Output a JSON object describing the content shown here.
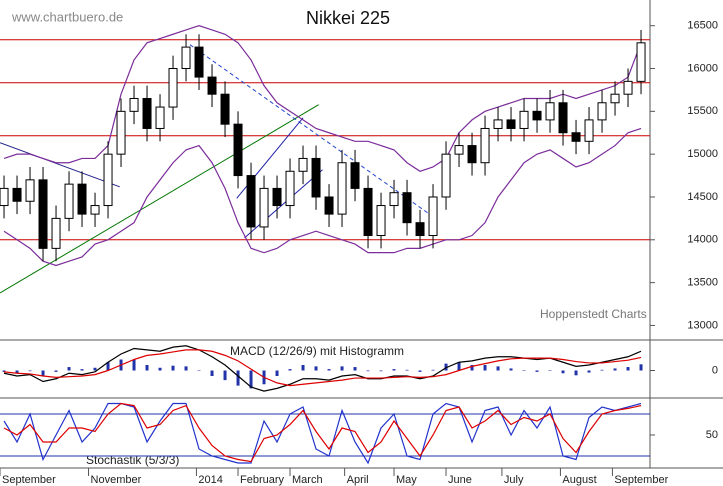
{
  "chart_data": {
    "type": "candlestick",
    "title": "Nikkei 225",
    "watermark": "www.chartbuero.de",
    "source": "Hoppenstedt Charts",
    "xlim": [
      -0.31,
      49.69
    ],
    "xticks": [
      {
        "value": -0.31,
        "label": "September"
      },
      {
        "value": 6.5,
        "label": "November"
      },
      {
        "value": 14.8,
        "label": "2014"
      },
      {
        "value": 18,
        "label": "February"
      },
      {
        "value": 22,
        "label": "March"
      },
      {
        "value": 26.2,
        "label": "April"
      },
      {
        "value": 30,
        "label": "May"
      },
      {
        "value": 34,
        "label": "June"
      },
      {
        "value": 38.3,
        "label": "July"
      },
      {
        "value": 42.8,
        "label": "August"
      },
      {
        "value": 46.8,
        "label": "September"
      }
    ],
    "ylim": [
      12830,
      16800
    ],
    "yticks": [
      13000,
      13500,
      14000,
      14500,
      15000,
      15500,
      16000,
      16500
    ],
    "up_color": "#ffffff",
    "down_color": "#000000",
    "open": [
      14400,
      14600,
      14450,
      14700,
      13900,
      14250,
      14650,
      14300,
      14400,
      15000,
      15500,
      15650,
      15300,
      15550,
      16000,
      16250,
      15900,
      15700,
      15350,
      14750,
      14150,
      14600,
      14400,
      14800,
      14950,
      14500,
      14300,
      14900,
      14600,
      14050,
      14400,
      14550,
      14200,
      14050,
      14500,
      15000,
      15100,
      14900,
      15300,
      15400,
      15300,
      15500,
      15400,
      15600,
      15250,
      15150,
      15400,
      15600,
      15700,
      15850
    ],
    "high": [
      14750,
      14750,
      14850,
      14850,
      14400,
      14800,
      14800,
      14550,
      15150,
      15650,
      15800,
      15800,
      15700,
      16150,
      16400,
      16400,
      16050,
      15850,
      15500,
      14900,
      14750,
      14750,
      14950,
      15100,
      15100,
      14650,
      15050,
      15050,
      14750,
      14550,
      14700,
      14700,
      14350,
      14650,
      15150,
      15250,
      15250,
      15450,
      15550,
      15550,
      15650,
      15650,
      15750,
      15750,
      15400,
      15550,
      15750,
      15850,
      16000,
      16450
    ],
    "low": [
      14250,
      14300,
      14300,
      13750,
      13750,
      14100,
      14150,
      14150,
      14250,
      14850,
      15350,
      15150,
      15150,
      15400,
      15850,
      15750,
      15550,
      15200,
      14600,
      14000,
      14000,
      14250,
      14250,
      14650,
      14350,
      14150,
      14150,
      14450,
      13900,
      13900,
      14250,
      14050,
      13900,
      13900,
      14350,
      14850,
      14750,
      14750,
      15150,
      15150,
      15150,
      15250,
      15250,
      15100,
      15000,
      15000,
      15250,
      15450,
      15550,
      15700
    ],
    "close": [
      14600,
      14450,
      14700,
      13900,
      14250,
      14650,
      14300,
      14400,
      15000,
      15500,
      15650,
      15300,
      15550,
      16000,
      16250,
      15900,
      15700,
      15350,
      14750,
      14150,
      14600,
      14400,
      14800,
      14950,
      14500,
      14300,
      14900,
      14600,
      14050,
      14400,
      14550,
      14200,
      14050,
      14500,
      15000,
      15100,
      14900,
      15300,
      15400,
      15300,
      15500,
      15400,
      15600,
      15250,
      15150,
      15400,
      15600,
      15700,
      15850,
      16300
    ],
    "bands": {
      "color": "#7b2d9a",
      "upper": [
        14950,
        15000,
        15000,
        14950,
        14900,
        14900,
        14950,
        14950,
        15100,
        15700,
        16100,
        16300,
        16350,
        16400,
        16450,
        16500,
        16450,
        16400,
        16300,
        16100,
        15800,
        15600,
        15500,
        15400,
        15300,
        15250,
        15200,
        15150,
        15150,
        15100,
        15050,
        14900,
        14800,
        14850,
        14950,
        15250,
        15400,
        15500,
        15550,
        15600,
        15650,
        15650,
        15650,
        15700,
        15650,
        15700,
        15750,
        15800,
        15900,
        16300
      ],
      "lower": [
        14100,
        14000,
        13900,
        13750,
        13700,
        13750,
        13800,
        13950,
        14000,
        14100,
        14200,
        14500,
        14700,
        14900,
        15050,
        15100,
        14900,
        14600,
        14200,
        13900,
        13850,
        13900,
        14000,
        14050,
        14100,
        14050,
        14000,
        13950,
        13850,
        13850,
        13850,
        13900,
        13900,
        13950,
        14000,
        14000,
        14050,
        14200,
        14500,
        14700,
        14900,
        15000,
        15050,
        14950,
        14850,
        14900,
        15000,
        15100,
        15250,
        15300
      ]
    },
    "levels": {
      "color": "#cc0000",
      "values": [
        16336,
        15834,
        15215,
        14000
      ]
    },
    "trend_lines": [
      {
        "color": "#22228a",
        "dashed": false,
        "x": [
          -0.31,
          8.9
        ],
        "y": [
          15133,
          14619
        ]
      },
      {
        "color": "#007700",
        "dashed": false,
        "x": [
          -0.31,
          24.2
        ],
        "y": [
          13380,
          15577
        ]
      },
      {
        "color": "#2244cc",
        "dashed": true,
        "x": [
          14.3,
          32.8
        ],
        "y": [
          16278,
          14292
        ]
      },
      {
        "color": "#2222aa",
        "dashed": false,
        "x": [
          18.5,
          24.5
        ],
        "y": [
          14023,
          14818
        ]
      },
      {
        "color": "#2222aa",
        "dashed": false,
        "x": [
          17.9,
          23
        ],
        "y": [
          14485,
          15425
        ]
      }
    ],
    "macd": {
      "title": "MACD (12/26/9) mit Histogramm",
      "ylim": [
        -200,
        200
      ],
      "yticks": [
        0
      ],
      "macd_color": "#000000",
      "signal_color": "#dd0000",
      "hist_color": "#2233aa",
      "macd": [
        -20,
        -40,
        -30,
        -80,
        -60,
        -20,
        -30,
        -10,
        60,
        120,
        160,
        150,
        140,
        170,
        180,
        150,
        100,
        40,
        -40,
        -120,
        -150,
        -130,
        -100,
        -60,
        -60,
        -70,
        -40,
        -30,
        -60,
        -60,
        -40,
        -40,
        -60,
        -40,
        20,
        60,
        70,
        90,
        100,
        100,
        90,
        80,
        90,
        60,
        30,
        40,
        60,
        80,
        100,
        140
      ],
      "signal": [
        -10,
        -20,
        -25,
        -40,
        -50,
        -45,
        -40,
        -30,
        0,
        40,
        80,
        110,
        120,
        135,
        150,
        150,
        140,
        110,
        70,
        10,
        -50,
        -90,
        -110,
        -100,
        -90,
        -80,
        -70,
        -55,
        -55,
        -55,
        -50,
        -45,
        -50,
        -45,
        -30,
        0,
        30,
        50,
        70,
        85,
        90,
        90,
        90,
        80,
        65,
        55,
        55,
        65,
        75,
        95
      ],
      "histogram": [
        -10,
        -20,
        -5,
        -40,
        -10,
        25,
        10,
        20,
        60,
        80,
        80,
        40,
        20,
        35,
        30,
        0,
        -40,
        -70,
        -110,
        -130,
        -100,
        -40,
        10,
        40,
        30,
        10,
        30,
        25,
        -5,
        -5,
        10,
        5,
        -10,
        5,
        50,
        60,
        40,
        40,
        30,
        15,
        0,
        -10,
        0,
        -20,
        -35,
        -15,
        5,
        15,
        25,
        45
      ]
    },
    "stochastic": {
      "title": "Stochastik (5/3/3)",
      "ylim": [
        0,
        100
      ],
      "yticks": [
        50
      ],
      "levels": [
        80,
        20
      ],
      "k_color": "#2233cc",
      "d_color": "#dd0000",
      "level_color": "#2233aa",
      "k": [
        70,
        40,
        80,
        15,
        50,
        85,
        40,
        60,
        95,
        95,
        90,
        40,
        70,
        95,
        95,
        30,
        20,
        15,
        10,
        10,
        70,
        40,
        80,
        90,
        30,
        20,
        85,
        40,
        10,
        60,
        80,
        20,
        15,
        80,
        95,
        90,
        40,
        85,
        90,
        50,
        85,
        60,
        90,
        20,
        15,
        75,
        90,
        85,
        90,
        95
      ],
      "d": [
        60,
        50,
        65,
        40,
        40,
        60,
        60,
        55,
        80,
        95,
        92,
        60,
        65,
        85,
        92,
        60,
        35,
        20,
        15,
        12,
        45,
        50,
        65,
        85,
        55,
        30,
        60,
        55,
        25,
        40,
        70,
        45,
        20,
        50,
        85,
        90,
        60,
        70,
        85,
        65,
        75,
        70,
        80,
        45,
        25,
        55,
        80,
        85,
        88,
        92
      ]
    }
  }
}
